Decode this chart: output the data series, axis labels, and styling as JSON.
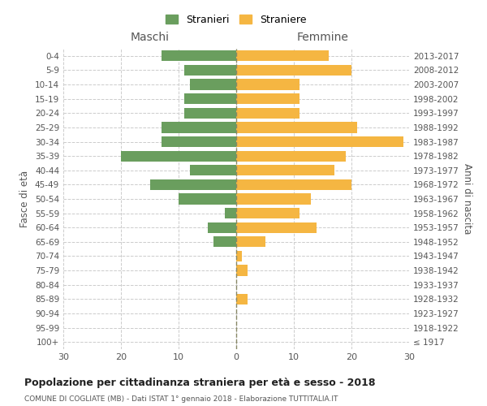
{
  "age_groups": [
    "0-4",
    "5-9",
    "10-14",
    "15-19",
    "20-24",
    "25-29",
    "30-34",
    "35-39",
    "40-44",
    "45-49",
    "50-54",
    "55-59",
    "60-64",
    "65-69",
    "70-74",
    "75-79",
    "80-84",
    "85-89",
    "90-94",
    "95-99",
    "100+"
  ],
  "birth_years": [
    "2013-2017",
    "2008-2012",
    "2003-2007",
    "1998-2002",
    "1993-1997",
    "1988-1992",
    "1983-1987",
    "1978-1982",
    "1973-1977",
    "1968-1972",
    "1963-1967",
    "1958-1962",
    "1953-1957",
    "1948-1952",
    "1943-1947",
    "1938-1942",
    "1933-1937",
    "1928-1932",
    "1923-1927",
    "1918-1922",
    "≤ 1917"
  ],
  "maschi": [
    13,
    9,
    8,
    9,
    9,
    13,
    13,
    20,
    8,
    15,
    10,
    2,
    5,
    4,
    0,
    0,
    0,
    0,
    0,
    0,
    0
  ],
  "femmine": [
    16,
    20,
    11,
    11,
    11,
    21,
    29,
    19,
    17,
    20,
    13,
    11,
    14,
    5,
    1,
    2,
    0,
    2,
    0,
    0,
    0
  ],
  "color_maschi": "#6a9e5e",
  "color_femmine": "#f5b642",
  "title": "Popolazione per cittadinanza straniera per età e sesso - 2018",
  "subtitle": "COMUNE DI COGLIATE (MB) - Dati ISTAT 1° gennaio 2018 - Elaborazione TUTTITALIA.IT",
  "ylabel_left": "Fasce di età",
  "ylabel_right": "Anni di nascita",
  "xlabel_maschi": "Maschi",
  "xlabel_femmine": "Femmine",
  "legend_maschi": "Stranieri",
  "legend_femmine": "Straniere",
  "xlim": 30,
  "background_color": "#ffffff",
  "grid_color": "#cccccc"
}
